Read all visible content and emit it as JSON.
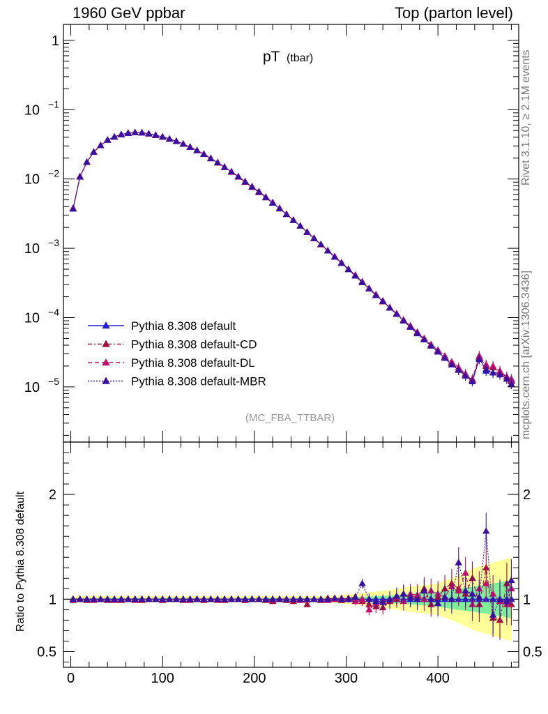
{
  "header": {
    "left": "1960 GeV ppbar",
    "right": "Top (parton level)"
  },
  "side_labels": {
    "rivet": "Rivet 3.1.10, ≥ 2.1M events",
    "mcplots": "mcplots.cern.ch [arXiv:1306.3436]"
  },
  "colors": {
    "default": "#1f1fcf",
    "cd": "#a0103a",
    "dl": "#c0106a",
    "mbr": "#3a10a0",
    "band_yellow": "#ffff99",
    "band_green": "#80ee99"
  },
  "chart_data": [
    {
      "type": "scatter",
      "panel": "main",
      "title": "pT",
      "title_sub": "(tbar)",
      "watermark": "(MC_FBA_TTBAR)",
      "xlabel": "",
      "ylabel": "",
      "xlim": [
        -8,
        488
      ],
      "ylim": [
        1.6e-06,
        1.7
      ],
      "yscale": "log",
      "y_tick_labels": [
        "1",
        "10",
        "10",
        "10",
        "10",
        "10"
      ],
      "y_tick_exponents": [
        "",
        "−1",
        "−2",
        "−3",
        "−4",
        "−5"
      ],
      "legend_position": "bottom-left",
      "x": [
        2.5,
        10,
        17.5,
        25,
        32.5,
        40,
        47.5,
        55,
        62.5,
        70,
        77.5,
        85,
        92.5,
        100,
        107.5,
        115,
        122.5,
        130,
        137.5,
        145,
        152.5,
        160,
        167.5,
        175,
        182.5,
        190,
        197.5,
        205,
        212.5,
        220,
        227.5,
        235,
        242.5,
        250,
        257.5,
        265,
        272.5,
        280,
        287.5,
        295,
        302.5,
        310,
        317.5,
        325,
        332.5,
        340,
        347.5,
        355,
        362.5,
        370,
        377.5,
        385,
        392.5,
        400,
        407.5,
        415,
        422.5,
        430,
        437.5,
        445,
        452.5,
        460,
        467.5,
        475,
        480
      ],
      "series": [
        {
          "name": "Pythia 8.308 default",
          "style": "solid",
          "values": [
            0.0037,
            0.0108,
            0.0175,
            0.0245,
            0.0305,
            0.0365,
            0.0405,
            0.0438,
            0.0458,
            0.0468,
            0.0465,
            0.045,
            0.0428,
            0.0405,
            0.0378,
            0.035,
            0.032,
            0.0288,
            0.0258,
            0.0228,
            0.0198,
            0.0172,
            0.0148,
            0.0127,
            0.0108,
            0.0091,
            0.0077,
            0.0065,
            0.0054,
            0.0045,
            0.00375,
            0.0031,
            0.00255,
            0.0021,
            0.00172,
            0.0014,
            0.00114,
            0.00092,
            0.00075,
            0.00061,
            0.000495,
            0.0004,
            0.000322,
            0.000262,
            0.00021,
            0.000172,
            0.000138,
            0.000112,
            9e-05,
            7.3e-05,
            5.9e-05,
            4.8e-05,
            3.9e-05,
            3.2e-05,
            2.6e-05,
            2.1e-05,
            1.75e-05,
            1.45e-05,
            1.2e-05,
            2.6e-05,
            1.7e-05,
            1.6e-05,
            1.6e-05,
            1.4e-05,
            1.3e-05
          ]
        },
        {
          "name": "Pythia 8.308 default-CD",
          "style": "dashdot",
          "values": [
            0.0037,
            0.0108,
            0.0174,
            0.0244,
            0.0304,
            0.0364,
            0.0404,
            0.0437,
            0.0457,
            0.0467,
            0.0464,
            0.0449,
            0.0427,
            0.0404,
            0.0377,
            0.0349,
            0.0319,
            0.0287,
            0.0257,
            0.0227,
            0.0197,
            0.0171,
            0.0147,
            0.0126,
            0.0107,
            0.009,
            0.0076,
            0.0064,
            0.0054,
            0.0045,
            0.00372,
            0.0031,
            0.00253,
            0.0021,
            0.0017,
            0.00138,
            0.00113,
            0.00092,
            0.00076,
            0.00062,
            0.0005,
            0.00041,
            0.00033,
            0.00026,
            0.00021,
            0.00017,
            0.00014,
            0.000114,
            9.2e-05,
            7.6e-05,
            6.1e-05,
            5e-05,
            4e-05,
            3.3e-05,
            2.7e-05,
            2.2e-05,
            1.8e-05,
            1.5e-05,
            1.25e-05,
            2.7e-05,
            2e-05,
            1.9e-05,
            1.6e-05,
            1.3e-05,
            1.2e-05
          ]
        },
        {
          "name": "Pythia 8.308 default-DL",
          "style": "dashed",
          "values": [
            0.0038,
            0.0109,
            0.0176,
            0.0246,
            0.0306,
            0.0366,
            0.0406,
            0.0439,
            0.0459,
            0.0469,
            0.0466,
            0.0451,
            0.0429,
            0.0406,
            0.0379,
            0.0351,
            0.0321,
            0.0289,
            0.0259,
            0.0229,
            0.0199,
            0.0173,
            0.0149,
            0.0128,
            0.0109,
            0.0092,
            0.0078,
            0.0066,
            0.0055,
            0.0046,
            0.0038,
            0.0031,
            0.00256,
            0.0021,
            0.00171,
            0.00139,
            0.00113,
            0.00093,
            0.00076,
            0.00062,
            0.0005,
            0.00041,
            0.00033,
            0.000265,
            0.000215,
            0.000175,
            0.00014,
            0.000115,
            9.3e-05,
            7.6e-05,
            6.2e-05,
            5e-05,
            4.1e-05,
            3.4e-05,
            2.8e-05,
            2.3e-05,
            1.9e-05,
            1.55e-05,
            1.3e-05,
            2.8e-05,
            2.1e-05,
            2e-05,
            1.7e-05,
            1.4e-05,
            1.25e-05
          ]
        },
        {
          "name": "Pythia 8.308 default-MBR",
          "style": "dotted",
          "values": [
            0.0037,
            0.0107,
            0.0175,
            0.0245,
            0.0305,
            0.0365,
            0.0405,
            0.0438,
            0.0458,
            0.0468,
            0.0465,
            0.045,
            0.0428,
            0.0405,
            0.0378,
            0.035,
            0.032,
            0.0288,
            0.0258,
            0.0228,
            0.0198,
            0.0172,
            0.0148,
            0.0127,
            0.0108,
            0.0091,
            0.0077,
            0.0065,
            0.0054,
            0.0045,
            0.00374,
            0.0031,
            0.00254,
            0.0021,
            0.00171,
            0.00139,
            0.00114,
            0.00092,
            0.00075,
            0.00061,
            0.000495,
            0.0004,
            0.000322,
            0.000262,
            0.00021,
            0.000172,
            0.000138,
            0.000112,
            9e-05,
            7.3e-05,
            5.9e-05,
            4.8e-05,
            3.9e-05,
            3.2e-05,
            2.6e-05,
            2.1e-05,
            1.75e-05,
            1.45e-05,
            1.2e-05,
            2.5e-05,
            1.8e-05,
            1.6e-05,
            1.5e-05,
            1.3e-05,
            1.1e-05
          ]
        }
      ]
    },
    {
      "type": "scatter",
      "panel": "ratio",
      "title": "",
      "xlabel": "",
      "ylabel": "Ratio to Pythia 8.308 default",
      "xlim": [
        -8,
        488
      ],
      "ylim": [
        0.35,
        2.5
      ],
      "x_ticks": [
        0,
        100,
        200,
        300,
        400
      ],
      "y_ticks": [
        0.5,
        1,
        2
      ],
      "bands": {
        "x": [
          0,
          280,
          310,
          340,
          370,
          400,
          420,
          440,
          460,
          480
        ],
        "yellow_half_width": [
          0.03,
          0.03,
          0.05,
          0.08,
          0.12,
          0.15,
          0.22,
          0.3,
          0.35,
          0.4
        ],
        "green_half_width": [
          0.01,
          0.01,
          0.02,
          0.03,
          0.05,
          0.07,
          0.1,
          0.12,
          0.15,
          0.18
        ]
      },
      "x": [
        2.5,
        10,
        17.5,
        25,
        32.5,
        40,
        47.5,
        55,
        62.5,
        70,
        77.5,
        85,
        92.5,
        100,
        107.5,
        115,
        122.5,
        130,
        137.5,
        145,
        152.5,
        160,
        167.5,
        175,
        182.5,
        190,
        197.5,
        205,
        212.5,
        220,
        227.5,
        235,
        242.5,
        250,
        257.5,
        265,
        272.5,
        280,
        287.5,
        295,
        302.5,
        310,
        317.5,
        325,
        332.5,
        340,
        347.5,
        355,
        362.5,
        370,
        377.5,
        385,
        392.5,
        400,
        407.5,
        415,
        422.5,
        430,
        437.5,
        445,
        452.5,
        460,
        467.5,
        475,
        480
      ],
      "series": [
        {
          "name": "Pythia 8.308 default",
          "style": "solid",
          "values": [
            1,
            1,
            1,
            1,
            1,
            1,
            1,
            1,
            1,
            1,
            1,
            1,
            1,
            1,
            1,
            1,
            1,
            1,
            1,
            1,
            1,
            1,
            1,
            1,
            1,
            1,
            1,
            1,
            1,
            1,
            1,
            1,
            1,
            1,
            1,
            1,
            1,
            1,
            1,
            1,
            1,
            1,
            1,
            1,
            1,
            1,
            1,
            1,
            1,
            1,
            1,
            1,
            1,
            1,
            1,
            1,
            1,
            1,
            1,
            1,
            1,
            1,
            1,
            1,
            1
          ]
        },
        {
          "name": "Pythia 8.308 default-CD",
          "style": "dashdot",
          "values": [
            0.99,
            1.0,
            0.99,
            1.0,
            1.0,
            0.99,
            1.0,
            0.99,
            1.0,
            1.0,
            0.99,
            1.0,
            1.0,
            0.99,
            1.0,
            1.0,
            0.99,
            1.0,
            1.0,
            0.99,
            1.0,
            1.0,
            0.99,
            1.0,
            1.0,
            0.99,
            1.0,
            1.0,
            0.99,
            0.98,
            1.0,
            0.99,
            0.98,
            1.0,
            0.95,
            1.0,
            0.99,
            1.01,
            1.0,
            0.99,
            1.01,
            1.02,
            0.98,
            0.95,
            0.93,
            0.92,
            0.98,
            1.0,
            1.05,
            1.02,
            1.03,
            1.1,
            0.95,
            1.02,
            1.1,
            1.15,
            1.1,
            1.05,
            1.2,
            0.95,
            1.3,
            0.82,
            0.8,
            1.15,
            0.95
          ]
        },
        {
          "name": "Pythia 8.308 default-DL",
          "style": "dashed",
          "values": [
            1.0,
            1.0,
            1.0,
            0.99,
            1.0,
            1.0,
            0.99,
            1.0,
            1.0,
            0.99,
            1.0,
            1.0,
            1.0,
            0.99,
            1.0,
            1.0,
            1.0,
            0.99,
            1.0,
            1.0,
            1.0,
            0.99,
            1.0,
            1.0,
            1.0,
            0.99,
            1.0,
            1.0,
            1.0,
            0.99,
            1.0,
            1.0,
            1.0,
            0.99,
            1.0,
            1.0,
            1.0,
            0.99,
            1.0,
            1.01,
            1.0,
            0.98,
            1.0,
            0.9,
            0.96,
            0.98,
            1.0,
            1.02,
            0.98,
            1.05,
            1.04,
            1.0,
            1.08,
            1.05,
            1.02,
            1.12,
            1.08,
            1.25,
            0.95,
            1.1,
            1.15,
            1.05,
            0.98,
            0.95,
            1.1
          ]
        },
        {
          "name": "Pythia 8.308 default-MBR",
          "style": "dotted",
          "values": [
            1.0,
            1.0,
            1.0,
            1.0,
            1.0,
            1.0,
            1.0,
            1.0,
            1.0,
            1.0,
            1.0,
            1.0,
            1.0,
            1.0,
            1.0,
            1.0,
            1.0,
            1.0,
            1.0,
            1.0,
            1.0,
            1.0,
            1.0,
            1.0,
            1.0,
            1.0,
            1.0,
            1.0,
            1.0,
            1.0,
            1.0,
            1.0,
            1.0,
            1.0,
            1.0,
            1.0,
            1.0,
            1.0,
            1.01,
            1.0,
            1.0,
            1.02,
            1.15,
            1.0,
            0.98,
            0.97,
            1.0,
            1.03,
            1.05,
            1.02,
            1.0,
            1.08,
            1.0,
            0.96,
            1.02,
            1.0,
            1.35,
            1.08,
            1.05,
            1.02,
            1.65,
            0.85,
            1.0,
            0.98,
            1.18
          ]
        }
      ]
    }
  ]
}
